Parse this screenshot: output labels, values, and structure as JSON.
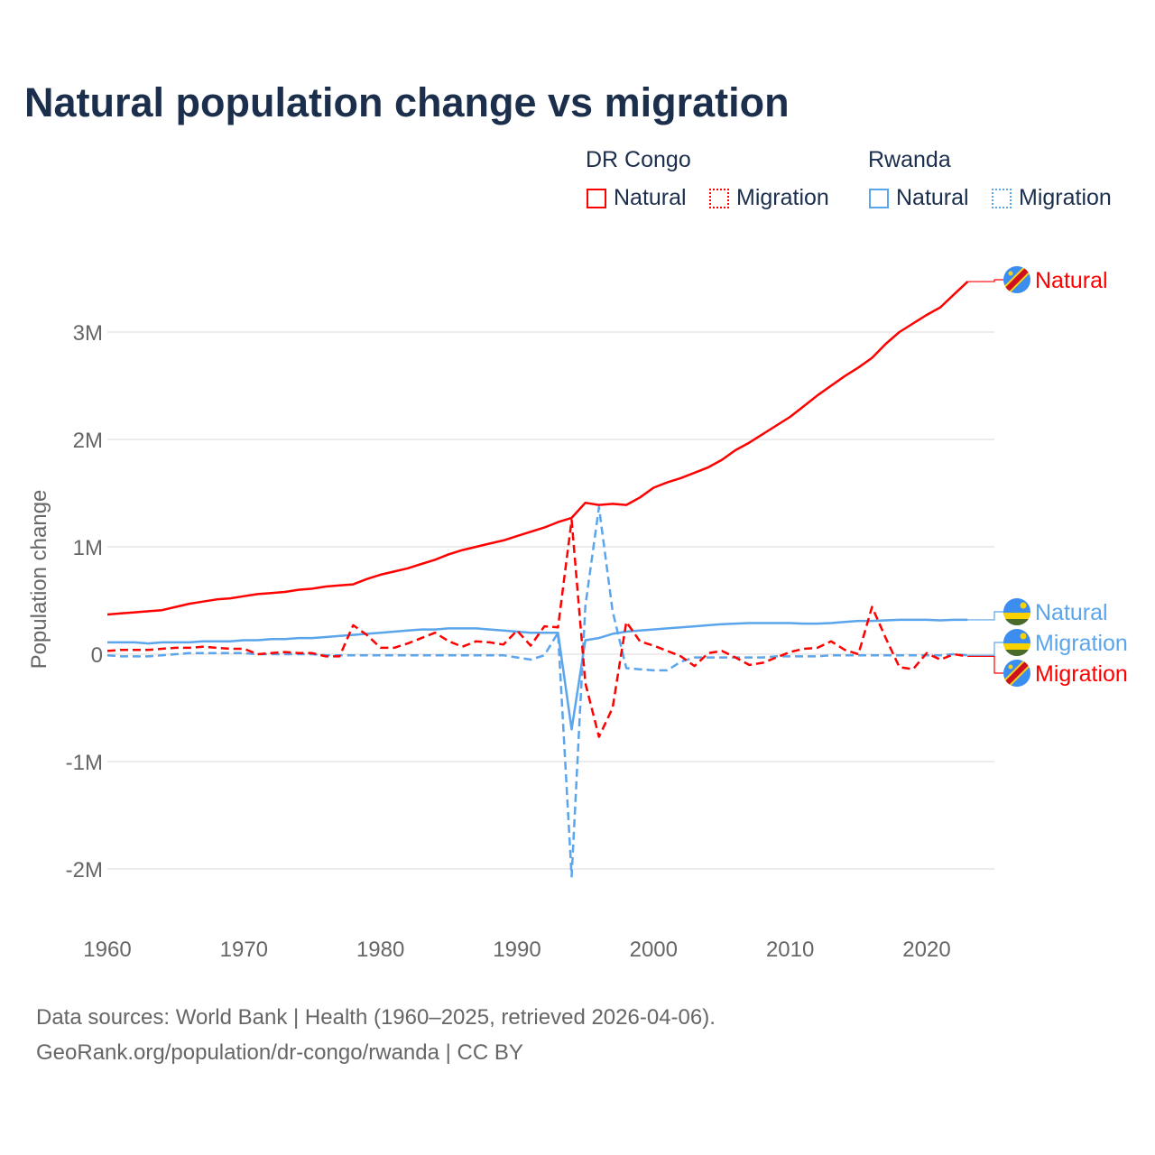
{
  "title": "Natural population change vs migration",
  "legend": {
    "groups": [
      {
        "name": "DR Congo",
        "items": [
          "Natural",
          "Migration"
        ],
        "color": "#ff0000"
      },
      {
        "name": "Rwanda",
        "items": [
          "Natural",
          "Migration"
        ],
        "color": "#5aa5ec"
      }
    ]
  },
  "source": {
    "line1": "Data sources: World Bank | Health (1960–2025, retrieved 2026-04-06).",
    "line2": "GeoRank.org/population/dr-congo/rwanda | CC BY"
  },
  "chart_data": {
    "type": "line",
    "title": "Natural population change vs migration",
    "xlabel": "",
    "ylabel": "Population change",
    "xlim": [
      1960,
      2025
    ],
    "ylim": [
      -2.4,
      3.8
    ],
    "x_ticks": [
      1960,
      1970,
      1980,
      1990,
      2000,
      2010,
      2020
    ],
    "y_ticks": [
      {
        "v": -2,
        "label": "-2M"
      },
      {
        "v": -1,
        "label": "-1M"
      },
      {
        "v": 0,
        "label": "0"
      },
      {
        "v": 1,
        "label": "1M"
      },
      {
        "v": 2,
        "label": "2M"
      },
      {
        "v": 3,
        "label": "3M"
      }
    ],
    "units": "millions",
    "x_start": 1960,
    "series": [
      {
        "name": "DR Congo Natural",
        "label": "Natural",
        "country": "drc",
        "color": "#ff0000",
        "dash": false,
        "values": [
          0.37,
          0.38,
          0.39,
          0.4,
          0.41,
          0.44,
          0.47,
          0.49,
          0.51,
          0.52,
          0.54,
          0.56,
          0.57,
          0.58,
          0.6,
          0.61,
          0.63,
          0.64,
          0.65,
          0.7,
          0.74,
          0.77,
          0.8,
          0.84,
          0.88,
          0.93,
          0.97,
          1.0,
          1.03,
          1.06,
          1.1,
          1.14,
          1.18,
          1.23,
          1.27,
          1.41,
          1.39,
          1.4,
          1.39,
          1.46,
          1.55,
          1.6,
          1.64,
          1.69,
          1.74,
          1.81,
          1.9,
          1.97,
          2.05,
          2.13,
          2.21,
          2.31,
          2.41,
          2.5,
          2.59,
          2.67,
          2.76,
          2.89,
          3.0,
          3.08,
          3.16,
          3.23,
          3.35,
          3.47
        ]
      },
      {
        "name": "DR Congo Migration",
        "label": "Migration",
        "country": "drc",
        "color": "#ff0000",
        "dash": true,
        "values": [
          0.03,
          0.04,
          0.04,
          0.04,
          0.05,
          0.06,
          0.06,
          0.07,
          0.06,
          0.05,
          0.05,
          0.0,
          0.01,
          0.02,
          0.01,
          0.01,
          -0.02,
          -0.02,
          0.27,
          0.18,
          0.06,
          0.06,
          0.1,
          0.15,
          0.2,
          0.12,
          0.07,
          0.12,
          0.11,
          0.09,
          0.22,
          0.08,
          0.26,
          0.25,
          1.25,
          -0.27,
          -0.77,
          -0.5,
          0.3,
          0.12,
          0.08,
          0.03,
          -0.02,
          -0.11,
          0.01,
          0.03,
          -0.03,
          -0.1,
          -0.08,
          -0.03,
          0.02,
          0.05,
          0.06,
          0.12,
          0.04,
          0.0,
          0.44,
          0.15,
          -0.12,
          -0.14,
          0.01,
          -0.05,
          0.0,
          -0.02
        ]
      },
      {
        "name": "Rwanda Natural",
        "label": "Natural",
        "country": "rwanda",
        "color": "#5aa5ec",
        "dash": false,
        "values": [
          0.11,
          0.11,
          0.11,
          0.1,
          0.11,
          0.11,
          0.11,
          0.12,
          0.12,
          0.12,
          0.13,
          0.13,
          0.14,
          0.14,
          0.15,
          0.15,
          0.16,
          0.17,
          0.18,
          0.19,
          0.2,
          0.21,
          0.22,
          0.23,
          0.23,
          0.24,
          0.24,
          0.24,
          0.23,
          0.22,
          0.21,
          0.2,
          0.2,
          0.2,
          -0.7,
          0.13,
          0.15,
          0.19,
          0.21,
          0.22,
          0.23,
          0.24,
          0.25,
          0.26,
          0.27,
          0.28,
          0.285,
          0.29,
          0.29,
          0.29,
          0.29,
          0.285,
          0.285,
          0.29,
          0.3,
          0.31,
          0.31,
          0.315,
          0.32,
          0.32,
          0.32,
          0.315,
          0.32,
          0.32
        ]
      },
      {
        "name": "Rwanda Migration",
        "label": "Migration",
        "country": "rwanda",
        "color": "#5aa5ec",
        "dash": true,
        "values": [
          -0.01,
          -0.02,
          -0.02,
          -0.02,
          -0.01,
          0.0,
          0.01,
          0.01,
          0.01,
          0.01,
          0.01,
          0.0,
          0.0,
          0.0,
          0.0,
          0.0,
          -0.01,
          -0.01,
          -0.01,
          -0.01,
          -0.01,
          -0.01,
          -0.01,
          -0.01,
          -0.01,
          -0.01,
          -0.01,
          -0.01,
          -0.01,
          -0.01,
          -0.03,
          -0.05,
          -0.01,
          0.2,
          -2.07,
          0.45,
          1.37,
          0.4,
          -0.13,
          -0.14,
          -0.15,
          -0.15,
          -0.07,
          -0.03,
          -0.03,
          -0.03,
          -0.03,
          -0.03,
          -0.03,
          -0.02,
          -0.02,
          -0.02,
          -0.02,
          -0.01,
          -0.01,
          -0.01,
          -0.01,
          -0.01,
          -0.01,
          -0.01,
          -0.01,
          -0.01,
          0.0,
          -0.01
        ]
      }
    ]
  }
}
